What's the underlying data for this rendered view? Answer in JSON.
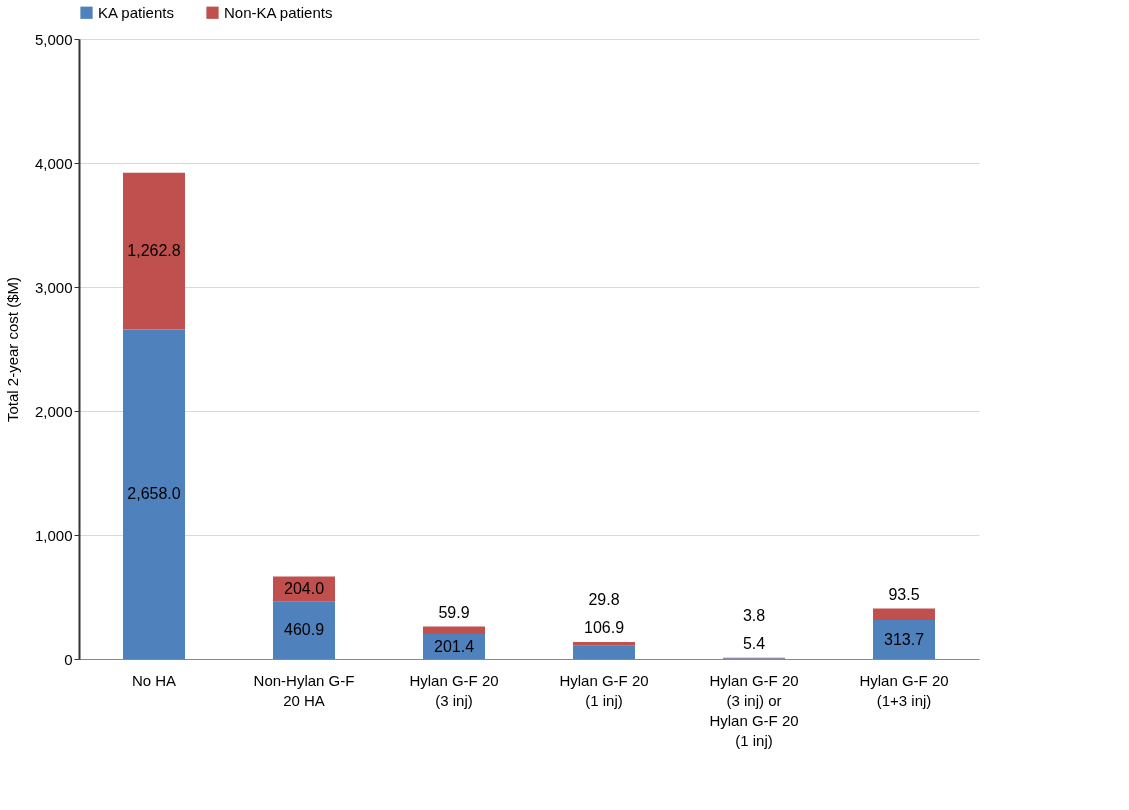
{
  "chart_data": {
    "type": "bar",
    "stacked": true,
    "ylabel": "Total 2-year cost ($M)",
    "categories": [
      "No HA",
      "Non-Hylan G-F 20 HA",
      "Hylan G-F 20 (3 inj)",
      "Hylan G-F 20 (1 inj)",
      "Hylan G-F 20 (3 inj) or Hylan G-F 20 (1 inj)",
      "Hylan G-F 20 (1+3 inj)"
    ],
    "series": [
      {
        "name": "KA patients",
        "color": "#4f81bd",
        "values": [
          2658.0,
          460.9,
          201.4,
          106.9,
          5.4,
          313.7
        ],
        "value_labels": [
          "2,658.0",
          "460.9",
          "201.4",
          "106.9",
          "5.4",
          "313.7"
        ]
      },
      {
        "name": "Non-KA patients",
        "color": "#c0504d",
        "values": [
          1262.8,
          204.0,
          59.9,
          29.8,
          3.8,
          93.5
        ],
        "value_labels": [
          "1,262.8",
          "204.0",
          "59.9",
          "29.8",
          "3.8",
          "93.5"
        ]
      }
    ],
    "ylim": [
      0,
      5000
    ],
    "yticks": [
      {
        "value": 0,
        "label": "0"
      },
      {
        "value": 1000,
        "label": "1,000"
      },
      {
        "value": 2000,
        "label": "2,000"
      },
      {
        "value": 3000,
        "label": "3,000"
      },
      {
        "value": 4000,
        "label": "4,000"
      },
      {
        "value": 5000,
        "label": "5,000"
      }
    ],
    "grid": "y",
    "legend": "top"
  }
}
